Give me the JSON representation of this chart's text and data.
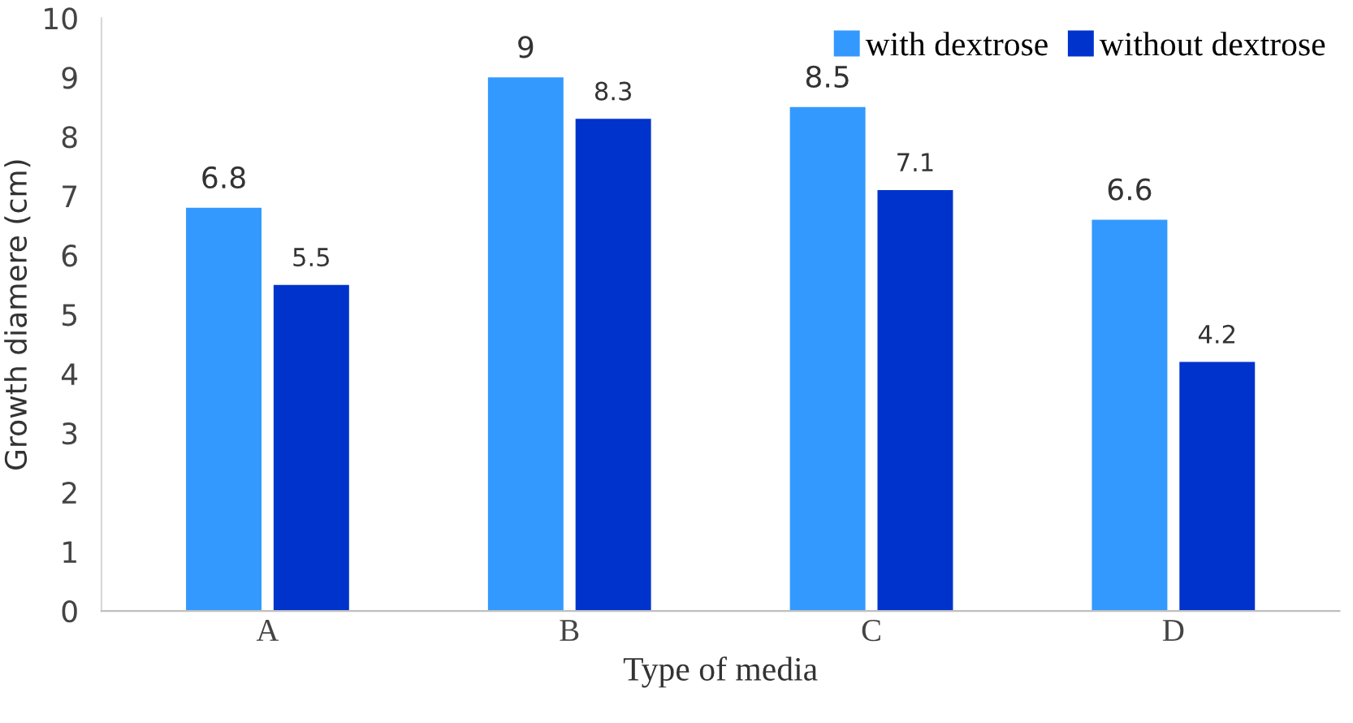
{
  "chart_data": {
    "type": "bar",
    "xlabel": "Type of media",
    "ylabel": "Growth diamere (cm)",
    "categories": [
      "A",
      "B",
      "C",
      "D"
    ],
    "series": [
      {
        "name": "with dextrose",
        "color": "#3399ff",
        "values": [
          6.8,
          9,
          8.5,
          6.6
        ]
      },
      {
        "name": "without dextrose",
        "color": "#0033cc",
        "values": [
          5.5,
          8.3,
          7.1,
          4.2
        ]
      }
    ],
    "ylim": [
      0,
      10
    ],
    "yticks": [
      0,
      1,
      2,
      3,
      4,
      5,
      6,
      7,
      8,
      9,
      10
    ],
    "grid": false,
    "legend": "top right",
    "data_labels": true
  }
}
